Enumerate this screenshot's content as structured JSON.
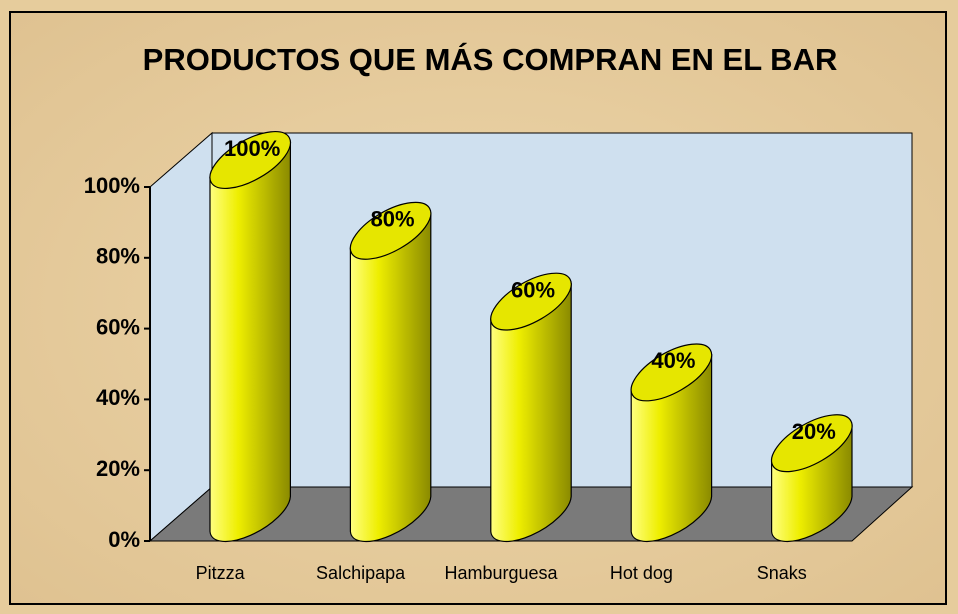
{
  "chart_data": {
    "type": "bar",
    "title": "PRODUCTOS QUE MÁS COMPRAN EN EL BAR",
    "categories": [
      "Pitzza",
      "Salchipapa",
      "Hamburguesa",
      "Hot dog",
      "Snaks"
    ],
    "values": [
      100,
      80,
      60,
      40,
      20
    ],
    "value_labels": [
      "100%",
      "80%",
      "60%",
      "40%",
      "20%"
    ],
    "color": "#e6e600",
    "ylim": [
      0,
      100
    ],
    "yticks": [
      {
        "value": 0,
        "label": "0%"
      },
      {
        "value": 20,
        "label": "20%"
      },
      {
        "value": 40,
        "label": "40%"
      },
      {
        "value": 60,
        "label": "60%"
      },
      {
        "value": 80,
        "label": "80%"
      },
      {
        "value": 100,
        "label": "100%"
      }
    ]
  }
}
